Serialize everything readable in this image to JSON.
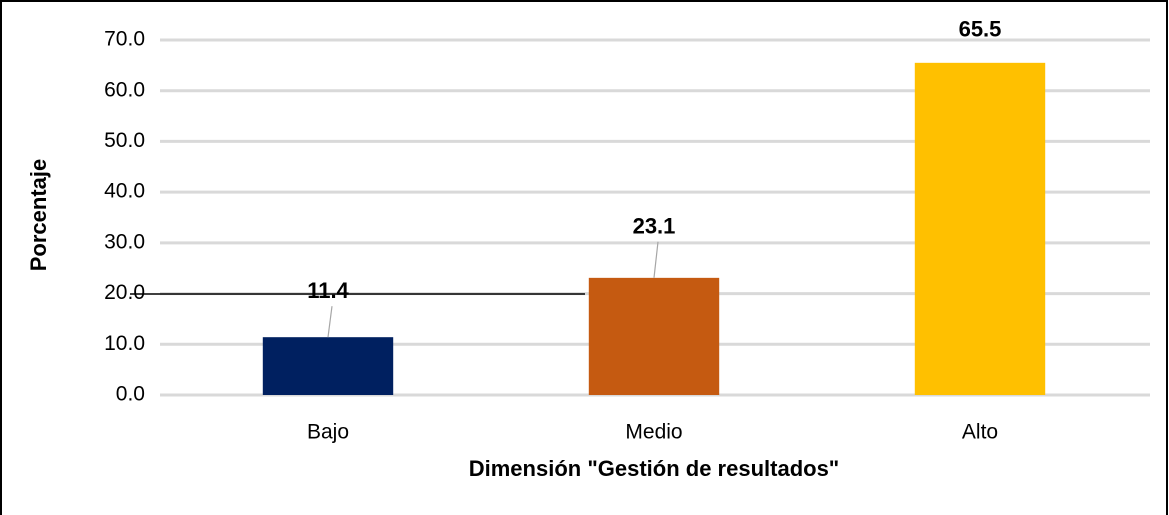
{
  "chart_data": {
    "type": "bar",
    "x_label": "Dimensión \"Gestión de resultados\"",
    "y_label": "Porcentaje",
    "categories": [
      "Bajo",
      "Medio",
      "Alto"
    ],
    "values": [
      11.4,
      23.1,
      65.5
    ],
    "colors": [
      "#002060",
      "#c55a11",
      "#ffc000"
    ],
    "ylim": [
      0,
      70
    ],
    "yticks": [
      {
        "value": 0,
        "label": "0.0"
      },
      {
        "value": 10,
        "label": "10.0"
      },
      {
        "value": 20,
        "label": "20.0"
      },
      {
        "value": 30,
        "label": "30.0"
      },
      {
        "value": 40,
        "label": "40.0"
      },
      {
        "value": 50,
        "label": "50.0"
      },
      {
        "value": 60,
        "label": "60.0"
      },
      {
        "value": 70,
        "label": "70.0"
      }
    ],
    "grid": true
  }
}
